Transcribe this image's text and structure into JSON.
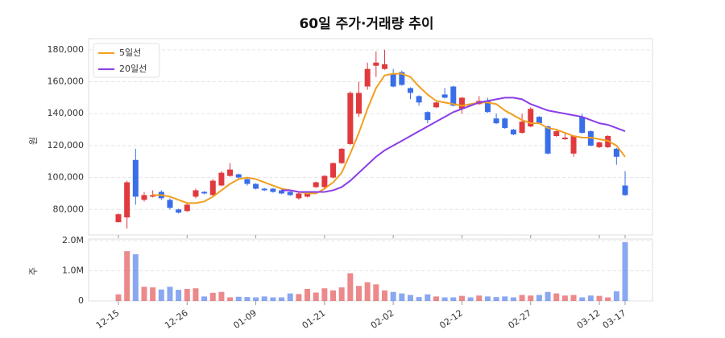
{
  "chart_data": {
    "type": "candlestick",
    "title": "60일 주가·거래량 추이",
    "y_label": "원",
    "categories": [
      "12-15",
      null,
      null,
      null,
      null,
      null,
      null,
      null,
      "12-26",
      null,
      null,
      null,
      null,
      null,
      null,
      null,
      "01-09",
      null,
      null,
      null,
      null,
      null,
      null,
      null,
      "01-21",
      null,
      null,
      null,
      null,
      null,
      null,
      null,
      "02-02",
      null,
      null,
      null,
      null,
      null,
      null,
      null,
      "02-12",
      null,
      null,
      null,
      null,
      null,
      null,
      null,
      "02-27",
      null,
      null,
      null,
      null,
      null,
      null,
      null,
      "03-12",
      null,
      null,
      "03-17"
    ],
    "open": [
      72000,
      75000,
      111000,
      86000,
      88000,
      91000,
      86000,
      80000,
      79000,
      88000,
      91000,
      89000,
      95000,
      101000,
      102000,
      99000,
      96000,
      93000,
      93000,
      92000,
      91000,
      87000,
      88000,
      94000,
      94000,
      100000,
      109000,
      121000,
      140000,
      157000,
      170000,
      168000,
      165000,
      166000,
      156000,
      151000,
      141000,
      144000,
      152000,
      157000,
      143000,
      146000,
      146000,
      148000,
      137000,
      137000,
      130000,
      128000,
      132000,
      138000,
      132000,
      126000,
      124000,
      115000,
      138000,
      129000,
      119000,
      119000,
      118000,
      95000
    ],
    "high": [
      77500,
      98000,
      118000,
      91000,
      92000,
      92000,
      87000,
      80500,
      83500,
      93000,
      91500,
      99000,
      104000,
      109000,
      102500,
      99500,
      96500,
      93500,
      93500,
      92500,
      91500,
      90500,
      90500,
      97500,
      101500,
      109500,
      118500,
      154000,
      160000,
      172000,
      179000,
      180000,
      168000,
      167000,
      156500,
      151500,
      141500,
      147500,
      156000,
      157500,
      150500,
      146500,
      151000,
      150000,
      140000,
      137500,
      130500,
      140000,
      144000,
      138500,
      132500,
      129500,
      128000,
      126500,
      140000,
      129500,
      122500,
      126500,
      118500,
      104000
    ],
    "low": [
      72000,
      68000,
      83000,
      85000,
      87500,
      86000,
      80000,
      77500,
      78500,
      87000,
      89500,
      88500,
      94500,
      100500,
      99500,
      95000,
      92500,
      91500,
      90500,
      89500,
      88500,
      86000,
      87500,
      93500,
      93500,
      99500,
      108500,
      120500,
      138000,
      155000,
      163000,
      167500,
      156500,
      157500,
      149000,
      145000,
      134000,
      143500,
      149500,
      144500,
      140000,
      144500,
      145500,
      140500,
      133500,
      130500,
      126500,
      127500,
      131500,
      133500,
      114500,
      125500,
      123500,
      113000,
      127500,
      119500,
      118500,
      118500,
      108000,
      88500
    ],
    "close": [
      77000,
      97000,
      88000,
      89000,
      89000,
      87000,
      81000,
      78000,
      83000,
      92000,
      90000,
      98000,
      103000,
      105000,
      100000,
      96000,
      93000,
      92000,
      91000,
      90000,
      89000,
      90000,
      90000,
      97000,
      101000,
      109000,
      118000,
      153000,
      153000,
      168000,
      172000,
      171000,
      157000,
      158000,
      153000,
      147000,
      136000,
      147000,
      150000,
      145000,
      150000,
      145000,
      148000,
      141000,
      134000,
      131000,
      127000,
      135000,
      143000,
      134000,
      115000,
      129000,
      125000,
      126000,
      128000,
      120000,
      122000,
      126000,
      113000,
      89000
    ],
    "series": [
      {
        "name": "5일선",
        "color": "#f0a020",
        "values": [
          null,
          null,
          null,
          null,
          89000,
          89000,
          88000,
          86000,
          84000,
          84000,
          85000,
          88000,
          92000,
          96000,
          99000,
          100000,
          99000,
          97000,
          95000,
          93000,
          92000,
          91000,
          90000,
          90000,
          93000,
          97000,
          103000,
          115000,
          128000,
          143000,
          156000,
          164000,
          165000,
          165000,
          163000,
          157000,
          152000,
          148000,
          147000,
          146000,
          145000,
          146000,
          147000,
          147000,
          146000,
          142000,
          139000,
          136000,
          134000,
          134000,
          131000,
          130000,
          128000,
          126000,
          125000,
          125000,
          124000,
          123000,
          120000,
          113000
        ]
      },
      {
        "name": "20일선",
        "color": "#8a3ee8",
        "values": [
          null,
          null,
          null,
          null,
          null,
          null,
          null,
          null,
          null,
          null,
          null,
          null,
          null,
          null,
          null,
          null,
          null,
          null,
          null,
          92000,
          92000,
          91000,
          91000,
          91000,
          91000,
          92000,
          94000,
          98000,
          103000,
          108000,
          113000,
          117000,
          120000,
          123000,
          126000,
          129000,
          132000,
          135000,
          138000,
          141000,
          143000,
          145000,
          147000,
          148000,
          149000,
          150000,
          150000,
          149000,
          146000,
          144000,
          142000,
          141000,
          140000,
          139000,
          138000,
          136000,
          134000,
          133000,
          131000,
          129000
        ]
      }
    ],
    "ylim": [
      64000,
      187000
    ],
    "yticks": [
      {
        "value": 80000,
        "label": "80,000"
      },
      {
        "value": 100000,
        "label": "100,000"
      },
      {
        "value": 120000,
        "label": "120,000"
      },
      {
        "value": 140000,
        "label": "140,000"
      },
      {
        "value": 160000,
        "label": "160,000"
      },
      {
        "value": 180000,
        "label": "180,000"
      }
    ],
    "grid": true,
    "legend": "top-left",
    "up_color": "#e03a3e",
    "down_color": "#3a6ee8",
    "volume": {
      "y_label": "주",
      "values": [
        220000,
        1650000,
        1550000,
        470000,
        450000,
        380000,
        470000,
        370000,
        400000,
        420000,
        150000,
        270000,
        300000,
        120000,
        140000,
        130000,
        120000,
        150000,
        120000,
        120000,
        250000,
        230000,
        400000,
        280000,
        420000,
        350000,
        450000,
        920000,
        500000,
        620000,
        550000,
        350000,
        300000,
        250000,
        200000,
        130000,
        220000,
        150000,
        120000,
        120000,
        170000,
        120000,
        180000,
        150000,
        130000,
        150000,
        120000,
        200000,
        180000,
        200000,
        300000,
        250000,
        180000,
        200000,
        120000,
        180000,
        170000,
        120000,
        320000,
        1950000
      ],
      "ylim": [
        0,
        2000000
      ],
      "yticks": [
        0,
        {
          "value": 1000000,
          "label": "1.0M"
        },
        {
          "value": 2000000,
          "label": "2.0M"
        }
      ]
    }
  }
}
